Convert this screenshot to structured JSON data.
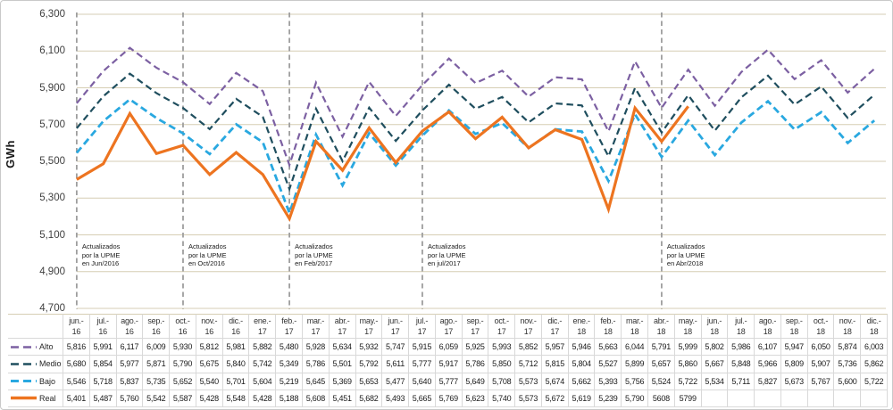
{
  "chart_data": {
    "type": "line",
    "title": "",
    "ylabel": "GWh",
    "ylim": [
      4700,
      6300
    ],
    "ytick_step": 200,
    "ytick_labels": [
      "6,300",
      "6,100",
      "5,900",
      "5,700",
      "5,500",
      "5,300",
      "5,100",
      "4,900",
      "4,700"
    ],
    "grid": true,
    "legend_position": "table-left",
    "categories": [
      [
        "jun.-",
        "16"
      ],
      [
        "jul.-",
        "16"
      ],
      [
        "ago.-",
        "16"
      ],
      [
        "sep.-",
        "16"
      ],
      [
        "oct.-",
        "16"
      ],
      [
        "nov.-",
        "16"
      ],
      [
        "dic.-",
        "16"
      ],
      [
        "ene.-",
        "17"
      ],
      [
        "feb.-",
        "17"
      ],
      [
        "mar.-",
        "17"
      ],
      [
        "abr.-",
        "17"
      ],
      [
        "may.-",
        "17"
      ],
      [
        "jun.-",
        "17"
      ],
      [
        "jul.-",
        "17"
      ],
      [
        "ago.-",
        "17"
      ],
      [
        "sep.-",
        "17"
      ],
      [
        "oct.-",
        "17"
      ],
      [
        "nov.-",
        "17"
      ],
      [
        "dic.-",
        "17"
      ],
      [
        "ene.-",
        "18"
      ],
      [
        "feb.-",
        "18"
      ],
      [
        "mar.-",
        "18"
      ],
      [
        "abr.-",
        "18"
      ],
      [
        "may.-",
        "18"
      ],
      [
        "jun.-",
        "18"
      ],
      [
        "jul.-",
        "18"
      ],
      [
        "ago.-",
        "18"
      ],
      [
        "sep.-",
        "18"
      ],
      [
        "oct.-",
        "18"
      ],
      [
        "nov.-",
        "18"
      ],
      [
        "dic.-",
        "18"
      ]
    ],
    "series": [
      {
        "name": "Alto",
        "color": "#7C60A2",
        "style": "dashed",
        "values": [
          5816,
          5991,
          6117,
          6009,
          5930,
          5812,
          5981,
          5882,
          5480,
          5928,
          5634,
          5932,
          5747,
          5915,
          6059,
          5925,
          5993,
          5852,
          5957,
          5946,
          5663,
          6044,
          5791,
          5999,
          5802,
          5986,
          6107,
          5947,
          6050,
          5874,
          6003
        ]
      },
      {
        "name": "Medio",
        "color": "#1F4E5E",
        "style": "dashed",
        "values": [
          5680,
          5854,
          5977,
          5871,
          5790,
          5675,
          5840,
          5742,
          5349,
          5786,
          5501,
          5792,
          5611,
          5777,
          5917,
          5786,
          5850,
          5712,
          5815,
          5804,
          5527,
          5899,
          5657,
          5860,
          5667,
          5848,
          5966,
          5809,
          5907,
          5736,
          5862
        ]
      },
      {
        "name": "Bajo",
        "color": "#29A8E0",
        "style": "dashed-thick",
        "values": [
          5546,
          5718,
          5837,
          5735,
          5652,
          5540,
          5701,
          5604,
          5219,
          5645,
          5369,
          5653,
          5477,
          5640,
          5777,
          5649,
          5708,
          5573,
          5674,
          5662,
          5393,
          5756,
          5524,
          5722,
          5534,
          5711,
          5827,
          5673,
          5767,
          5600,
          5722
        ]
      },
      {
        "name": "Real",
        "color": "#ED7420",
        "style": "solid",
        "values": [
          5401,
          5487,
          5760,
          5542,
          5587,
          5428,
          5548,
          5428,
          5188,
          5608,
          5451,
          5682,
          5493,
          5665,
          5769,
          5623,
          5740,
          5573,
          5672,
          5619,
          5239,
          5790,
          5608,
          5799,
          null,
          null,
          null,
          null,
          null,
          null,
          null
        ],
        "display": [
          "5,401",
          "5,487",
          "5,760",
          "5,542",
          "5,587",
          "5,428",
          "5,548",
          "5,428",
          "5,188",
          "5,608",
          "5,451",
          "5,682",
          "5,493",
          "5,665",
          "5,769",
          "5,623",
          "5,740",
          "5,573",
          "5,672",
          "5,619",
          "5,239",
          "5,790",
          "5608",
          "5799",
          "",
          "",
          "",
          "",
          "",
          "",
          ""
        ]
      }
    ],
    "vline_month_indices": [
      0,
      4,
      8,
      13,
      22
    ],
    "annotations": [
      {
        "month_index": 0,
        "lines": [
          "Actualizados",
          "por la UPME",
          "en Jun/2016"
        ]
      },
      {
        "month_index": 4,
        "lines": [
          "Actualizados",
          "por la UPME",
          "en Oct/2016"
        ]
      },
      {
        "month_index": 8,
        "lines": [
          "Actualizados",
          "por la UPME",
          "en Feb/2017"
        ]
      },
      {
        "month_index": 13,
        "lines": [
          "Actualizados",
          "por la UPME",
          "en jul/2017"
        ]
      },
      {
        "month_index": 22,
        "lines": [
          "Actualizados",
          "por la UPME",
          "en Abr/2018"
        ]
      }
    ],
    "colors": {
      "gridline": "#D6CEB4",
      "vline": "#9E9E9E",
      "table_border": "#D9D9D9",
      "axis_text": "#3F3F3F"
    }
  }
}
